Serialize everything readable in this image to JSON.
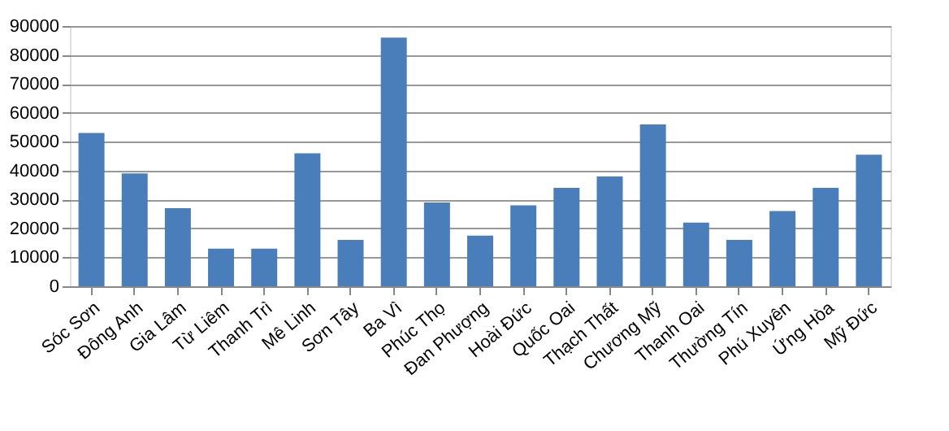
{
  "chart_data": {
    "type": "bar",
    "categories": [
      "Sóc Sơn",
      "Đông Anh",
      "Gia Lâm",
      "Từ Liêm",
      "Thanh Trì",
      "Mê Linh",
      "Sơn Tây",
      "Ba Vì",
      "Phúc Thọ",
      "Đan Phượng",
      "Hoài Đức",
      "Quốc Oai",
      "Thạch Thất",
      "Chương Mỹ",
      "Thanh Oai",
      "Thường Tín",
      "Phú Xuyên",
      "Ứng Hòa",
      "Mỹ Đức"
    ],
    "values": [
      53000,
      39000,
      27000,
      13000,
      13000,
      46000,
      16000,
      86000,
      29000,
      17500,
      28000,
      34000,
      38000,
      56000,
      22000,
      16000,
      26000,
      34000,
      45500
    ],
    "color": "#4a7ebb",
    "ylim": [
      0,
      90000
    ],
    "yticks": [
      0,
      10000,
      20000,
      30000,
      40000,
      50000,
      60000,
      70000,
      80000,
      90000
    ],
    "grid": "y"
  }
}
